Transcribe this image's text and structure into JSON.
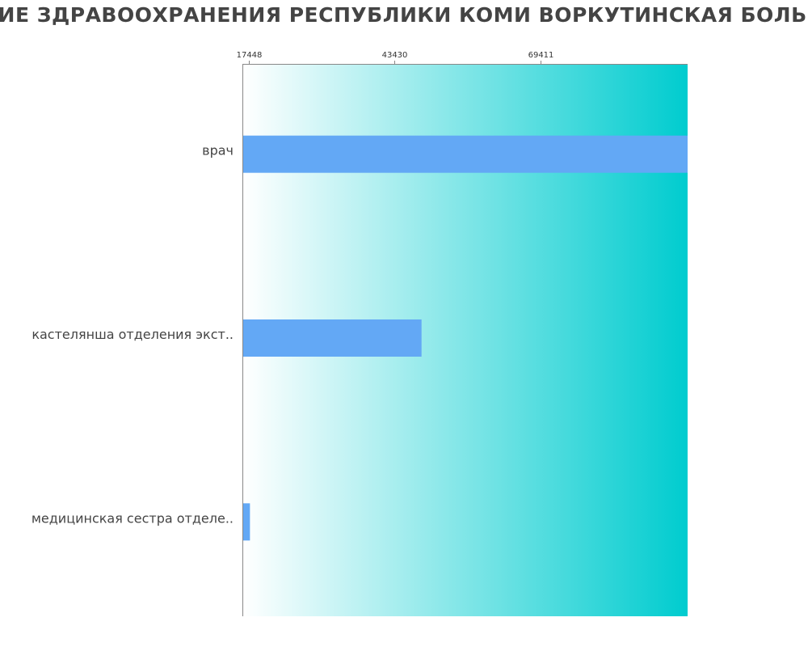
{
  "chart_data": {
    "type": "bar",
    "orientation": "horizontal",
    "title": "ЕНИЕ ЗДРАВООХРАНЕНИЯ РЕСПУБЛИКИ КОМИ ВОРКУТИНСКАЯ БОЛЬНИ",
    "xlabel": "",
    "ylabel": "",
    "x_ticks": [
      17448,
      43430,
      69411
    ],
    "xlim": [
      16500,
      95500
    ],
    "grid": false,
    "categories": [
      "врач",
      "кастелянша отделения экст..",
      "медицинская сестра отделе.."
    ],
    "values": [
      95500,
      48200,
      17700
    ],
    "colors": {
      "bar": "#63a8f5",
      "background_start": "#ffffff",
      "background_end": "#00cccf",
      "axis": "#888888",
      "title": "#444444",
      "label": "#444444"
    }
  }
}
